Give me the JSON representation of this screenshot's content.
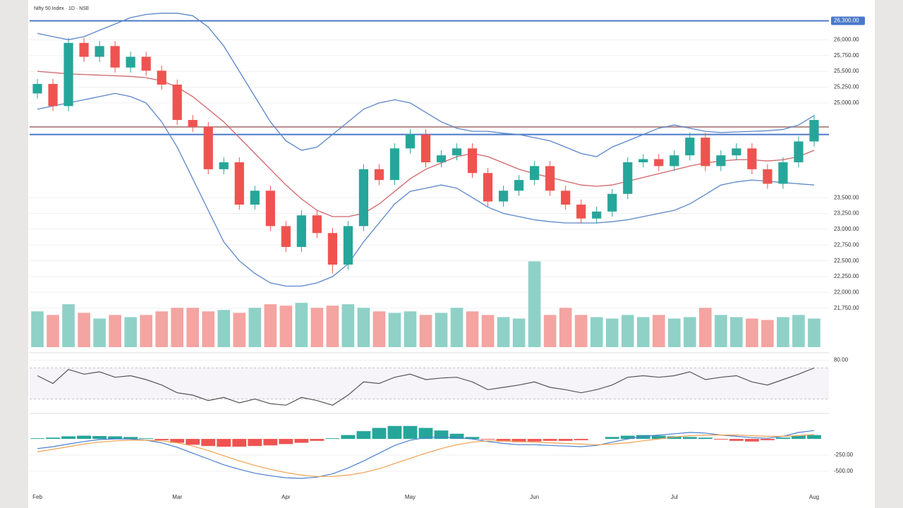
{
  "chart_data": [
    {
      "type": "candlestick",
      "title": "Nifty 50 Index · 1D · NSE",
      "categories": [
        "Feb",
        null,
        null,
        null,
        null,
        null,
        null,
        null,
        null,
        "Mar",
        null,
        null,
        null,
        null,
        null,
        null,
        "Apr",
        null,
        null,
        null,
        null,
        null,
        null,
        null,
        "May",
        null,
        null,
        null,
        null,
        null,
        null,
        null,
        "Jun",
        null,
        null,
        null,
        null,
        null,
        null,
        null,
        null,
        "Jul",
        null,
        null,
        null,
        null,
        null,
        null,
        null,
        null,
        "Aug"
      ],
      "open": [
        25150,
        25300,
        24950,
        25950,
        25730,
        25900,
        25560,
        25730,
        25510,
        25290,
        24730,
        24620,
        23950,
        24060,
        23390,
        23610,
        23050,
        22720,
        23220,
        22940,
        22440,
        23050,
        23950,
        23780,
        24280,
        24500,
        24060,
        24170,
        24280,
        23890,
        23440,
        23610,
        23780,
        24000,
        23610,
        23390,
        23170,
        23280,
        23560,
        24060,
        24110,
        24000,
        24170,
        24450,
        24000,
        24170,
        24280,
        23950,
        23720,
        24060,
        24390
      ],
      "high": [
        25380,
        25380,
        26030,
        26030,
        25980,
        25980,
        25810,
        25810,
        25590,
        25370,
        24810,
        24700,
        24140,
        24140,
        23690,
        23690,
        23130,
        23300,
        23300,
        23020,
        23130,
        24030,
        24030,
        24360,
        24580,
        24580,
        24250,
        24360,
        24360,
        23970,
        23690,
        23860,
        24080,
        24080,
        23690,
        23470,
        23360,
        23640,
        24140,
        24190,
        24190,
        24250,
        24530,
        24530,
        24250,
        24360,
        24360,
        24030,
        24140,
        24470,
        24810
      ],
      "low": [
        25070,
        24870,
        24870,
        25650,
        25650,
        25480,
        25480,
        25430,
        25210,
        24650,
        24540,
        23870,
        23870,
        23310,
        23310,
        22970,
        22640,
        22640,
        22860,
        22300,
        22360,
        22970,
        23700,
        23700,
        24200,
        23980,
        23980,
        24090,
        23810,
        23360,
        23360,
        23530,
        23700,
        23530,
        23310,
        23090,
        23090,
        23200,
        23480,
        23980,
        23920,
        23920,
        24090,
        23920,
        23920,
        24090,
        23870,
        23640,
        23640,
        23980,
        24310
      ],
      "close": [
        25300,
        24950,
        25950,
        25730,
        25900,
        25560,
        25730,
        25510,
        25290,
        24730,
        24620,
        23950,
        24060,
        23390,
        23610,
        23050,
        22720,
        23220,
        22940,
        22440,
        23050,
        23950,
        23780,
        24280,
        24500,
        24060,
        24170,
        24280,
        23890,
        23440,
        23610,
        23780,
        24000,
        23610,
        23390,
        23170,
        23280,
        23560,
        24060,
        24110,
        24000,
        24170,
        24450,
        24000,
        24170,
        24280,
        23950,
        23720,
        24060,
        24390,
        24730
      ],
      "up_color": "#26a69a",
      "down_color": "#ef5350",
      "bands": {
        "upper": [
          26100,
          26050,
          26000,
          26050,
          26150,
          26250,
          26350,
          26400,
          26420,
          26420,
          26380,
          26200,
          25900,
          25500,
          25100,
          24700,
          24400,
          24250,
          24300,
          24500,
          24700,
          24900,
          25000,
          25050,
          25000,
          24850,
          24700,
          24600,
          24550,
          24550,
          24520,
          24500,
          24450,
          24400,
          24300,
          24200,
          24150,
          24300,
          24400,
          24500,
          24600,
          24650,
          24600,
          24550,
          24530,
          24540,
          24550,
          24560,
          24580,
          24650,
          24800
        ],
        "middle": [
          25500,
          25480,
          25460,
          25450,
          25440,
          25430,
          25420,
          25400,
          25350,
          25250,
          25100,
          24900,
          24700,
          24450,
          24200,
          23950,
          23700,
          23480,
          23300,
          23200,
          23200,
          23250,
          23400,
          23600,
          23800,
          23950,
          24050,
          24150,
          24200,
          24150,
          24050,
          23950,
          23880,
          23820,
          23760,
          23700,
          23680,
          23700,
          23760,
          23820,
          23880,
          23940,
          24000,
          24050,
          24080,
          24100,
          24100,
          24080,
          24100,
          24150,
          24250
        ],
        "lower": [
          24900,
          24950,
          25000,
          25050,
          25100,
          25150,
          25100,
          25000,
          24700,
          24300,
          23800,
          23300,
          22800,
          22500,
          22300,
          22150,
          22100,
          22100,
          22150,
          22250,
          22450,
          22800,
          23100,
          23400,
          23600,
          23650,
          23700,
          23650,
          23500,
          23350,
          23250,
          23200,
          23150,
          23120,
          23100,
          23100,
          23100,
          23120,
          23150,
          23200,
          23250,
          23300,
          23400,
          23550,
          23700,
          23750,
          23780,
          23760,
          23740,
          23720,
          23700
        ],
        "band_color": "#5b86c9",
        "middle_color": "#d0646a"
      },
      "levels": [
        {
          "value": 26300,
          "label": "26,300.00",
          "color": "#4a78c8"
        },
        {
          "value": 24500,
          "color": "#4a78c8"
        },
        {
          "value": 24620,
          "color": "#b58a8a"
        }
      ],
      "ylim": [
        21100,
        26540
      ],
      "yticks": [
        {
          "value": 26000,
          "label": "26,000.00"
        },
        {
          "value": 25750,
          "label": "25,750.00"
        },
        {
          "value": 25500,
          "label": "25,500.00"
        },
        {
          "value": 25250,
          "label": "25,250.00"
        },
        {
          "value": 25000,
          "label": "25,000.00"
        },
        {
          "value": 23500,
          "label": "23,500.00"
        },
        {
          "value": 23250,
          "label": "23,250.00"
        },
        {
          "value": 23000,
          "label": "23,000.00"
        },
        {
          "value": 22750,
          "label": "22,750.00"
        },
        {
          "value": 22500,
          "label": "22,500.00"
        },
        {
          "value": 22250,
          "label": "22,250.00"
        },
        {
          "value": 22000,
          "label": "22,000.00"
        },
        {
          "value": 21750,
          "label": "21,750.00"
        }
      ]
    },
    {
      "type": "volume",
      "values": [
        50,
        45,
        60,
        48,
        40,
        45,
        42,
        45,
        50,
        55,
        55,
        50,
        52,
        48,
        55,
        60,
        58,
        62,
        55,
        58,
        60,
        55,
        50,
        48,
        50,
        45,
        48,
        55,
        50,
        45,
        42,
        40,
        120,
        45,
        55,
        45,
        42,
        40,
        45,
        42,
        45,
        40,
        42,
        55,
        45,
        42,
        40,
        38,
        42,
        45,
        40
      ],
      "up_color": "#8fd1c7",
      "down_color": "#f4a4a1",
      "ylim": [
        0,
        150
      ]
    },
    {
      "type": "line",
      "values": [
        60,
        50,
        68,
        62,
        65,
        58,
        60,
        55,
        48,
        38,
        35,
        28,
        32,
        25,
        30,
        24,
        22,
        32,
        28,
        22,
        35,
        52,
        50,
        58,
        62,
        55,
        57,
        58,
        52,
        42,
        45,
        48,
        52,
        45,
        42,
        38,
        42,
        48,
        58,
        60,
        58,
        60,
        65,
        55,
        58,
        60,
        52,
        48,
        55,
        62,
        70
      ],
      "color": "#555555",
      "levels": [
        70,
        30
      ],
      "ylim": [
        15,
        85
      ],
      "yticks": [
        {
          "value": 80,
          "label": "80.00"
        }
      ]
    },
    {
      "type": "macd",
      "histogram": [
        10,
        20,
        40,
        50,
        45,
        40,
        30,
        10,
        -20,
        -60,
        -90,
        -110,
        -120,
        -120,
        -110,
        -100,
        -80,
        -60,
        -30,
        10,
        60,
        120,
        170,
        200,
        200,
        170,
        130,
        80,
        30,
        -10,
        -40,
        -50,
        -40,
        -30,
        -30,
        -20,
        0,
        30,
        50,
        60,
        50,
        40,
        30,
        20,
        -10,
        -30,
        -40,
        -20,
        20,
        50,
        60
      ],
      "macd": [
        -150,
        -120,
        -80,
        -40,
        -10,
        0,
        0,
        -20,
        -60,
        -130,
        -220,
        -310,
        -400,
        -470,
        -530,
        -570,
        -600,
        -610,
        -590,
        -540,
        -450,
        -340,
        -220,
        -100,
        -20,
        20,
        30,
        20,
        0,
        -40,
        -70,
        -90,
        -90,
        -100,
        -110,
        -120,
        -100,
        -50,
        0,
        40,
        60,
        80,
        100,
        90,
        60,
        40,
        20,
        10,
        40,
        100,
        130
      ],
      "signal": [
        -200,
        -160,
        -120,
        -80,
        -50,
        -30,
        -20,
        -20,
        -30,
        -60,
        -110,
        -180,
        -260,
        -340,
        -410,
        -470,
        -520,
        -560,
        -580,
        -580,
        -560,
        -520,
        -460,
        -380,
        -300,
        -220,
        -150,
        -90,
        -50,
        -30,
        -30,
        -40,
        -50,
        -60,
        -70,
        -80,
        -90,
        -80,
        -60,
        -30,
        0,
        30,
        50,
        60,
        60,
        60,
        50,
        40,
        40,
        50,
        70
      ],
      "positive_color": "#26a69a",
      "negative_color": "#ef5350",
      "macd_color": "#4a7fd0",
      "signal_color": "#f0a050",
      "ylim": [
        -850,
        350
      ],
      "yticks": [
        {
          "value": -250,
          "label": "-250.00"
        },
        {
          "value": -500,
          "label": "-500.00"
        }
      ]
    }
  ]
}
